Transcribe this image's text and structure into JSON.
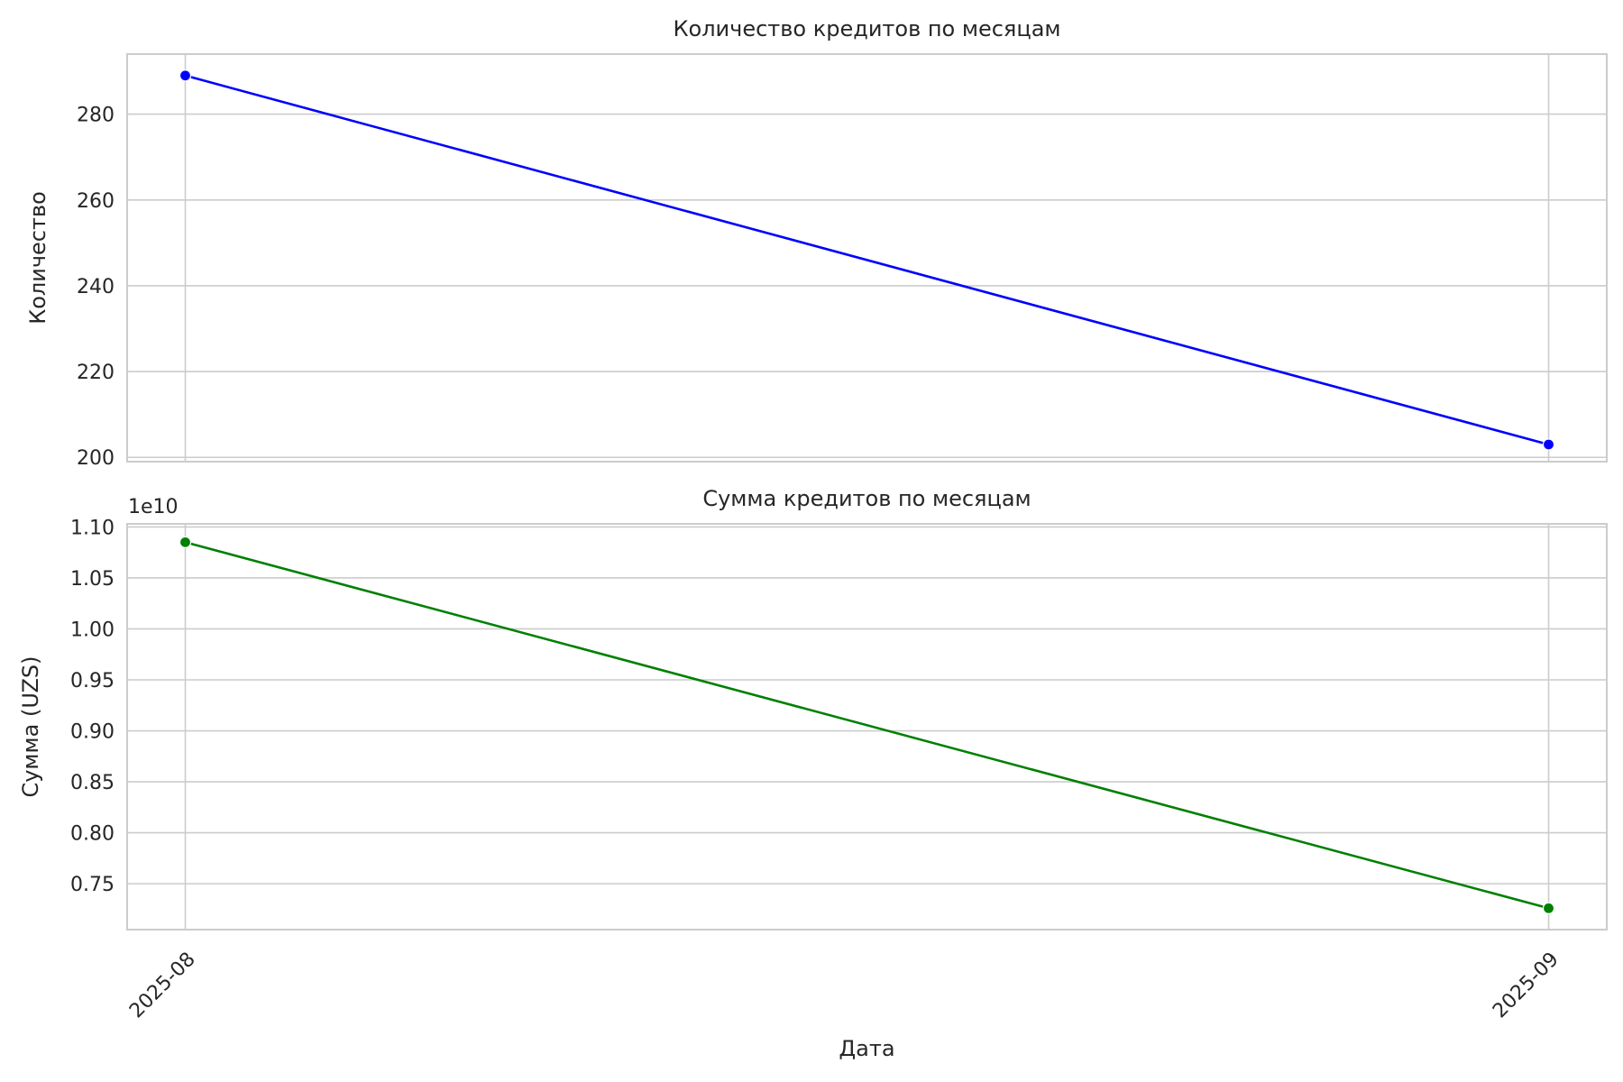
{
  "chart_data": [
    {
      "type": "line",
      "title": "Количество кредитов по месяцам",
      "xlabel": "",
      "ylabel": "Количество",
      "categories": [
        "2025-08",
        "2025-09"
      ],
      "series": [
        {
          "values": [
            289,
            203
          ],
          "color": "#0000ff",
          "marker": "circle"
        }
      ],
      "ylim": [
        199,
        294
      ],
      "yticks": [
        200,
        220,
        240,
        260,
        280
      ],
      "ytick_labels": [
        "200",
        "220",
        "240",
        "260",
        "280"
      ],
      "grid": true,
      "legend": "none"
    },
    {
      "type": "line",
      "title": "Сумма кредитов по месяцам",
      "xlabel": "Дата",
      "ylabel": "Сумма (UZS)",
      "categories": [
        "2025-08",
        "2025-09"
      ],
      "xtick_labels": [
        "2025-08",
        "2025-09"
      ],
      "offset_text": "1e10",
      "series": [
        {
          "values": [
            10850000000,
            7260000000
          ],
          "color": "#008000",
          "marker": "circle"
        }
      ],
      "ylim": [
        7050000000,
        11030000000
      ],
      "yticks": [
        7500000000,
        8000000000,
        8500000000,
        9000000000,
        9500000000,
        10000000000,
        10500000000,
        11000000000
      ],
      "ytick_labels": [
        "0.75",
        "0.80",
        "0.85",
        "0.90",
        "0.95",
        "1.00",
        "1.05",
        "1.10"
      ],
      "grid": true,
      "legend": "none"
    }
  ]
}
